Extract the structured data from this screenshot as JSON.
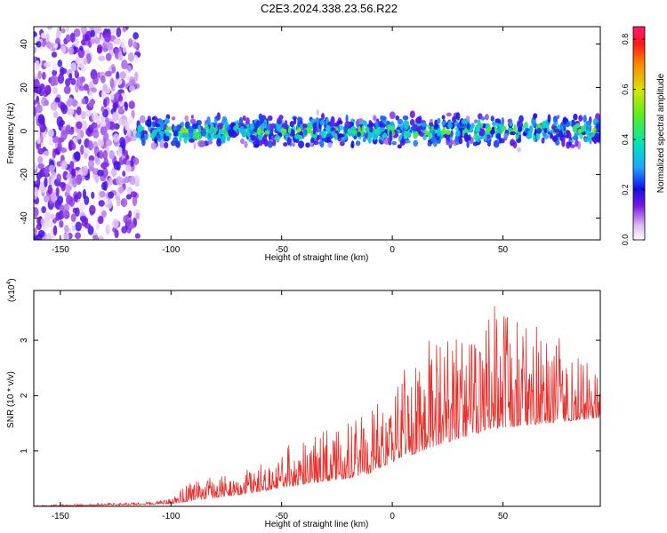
{
  "title": "C2E3.2024.338.23.56.R22",
  "chart_data": [
    {
      "type": "heatmap",
      "xlabel": "Height of straight line (km)",
      "ylabel": "Frequency (Hz)",
      "xlim": [
        -162,
        94
      ],
      "ylim": [
        -50,
        48
      ],
      "xticks": [
        -150,
        -100,
        -50,
        0,
        50
      ],
      "yticks": [
        -40,
        -20,
        0,
        20,
        40
      ],
      "colorbar": {
        "label": "Normalized spectral amplitude",
        "range": [
          0.0,
          0.85
        ],
        "ticks": [
          0.0,
          0.2,
          0.4,
          0.6,
          0.8
        ]
      },
      "bands": [
        {
          "x_range": [
            -162,
            -115
          ],
          "y_range": [
            -50,
            48
          ],
          "mean_amplitude": 0.1
        },
        {
          "x_range": [
            -115,
            94
          ],
          "y_center": 0,
          "y_halfwidth": 7,
          "mean_amplitude": 0.3
        }
      ]
    },
    {
      "type": "line",
      "xlabel": "Height of straight line (km)",
      "ylabel": "SNR (10 * v/v)",
      "scale_note": "(x10",
      "scale_exponent": "4",
      "xlim": [
        -162,
        94
      ],
      "ylim": [
        0,
        3.9
      ],
      "xticks": [
        -150,
        -100,
        -50,
        0,
        50
      ],
      "yticks": [
        1,
        2,
        3
      ],
      "series": [
        {
          "color": "#e8302b",
          "envelope": [
            {
              "x": -162,
              "base": 0.0,
              "peak": 0.02
            },
            {
              "x": -110,
              "base": 0.03,
              "peak": 0.08
            },
            {
              "x": -100,
              "base": 0.05,
              "peak": 0.15
            },
            {
              "x": -90,
              "base": 0.1,
              "peak": 0.5
            },
            {
              "x": -70,
              "base": 0.2,
              "peak": 0.6
            },
            {
              "x": -55,
              "base": 0.3,
              "peak": 0.9
            },
            {
              "x": -40,
              "base": 0.4,
              "peak": 1.3
            },
            {
              "x": -20,
              "base": 0.5,
              "peak": 1.5
            },
            {
              "x": -10,
              "base": 0.6,
              "peak": 1.8
            },
            {
              "x": 0,
              "base": 0.8,
              "peak": 2.3
            },
            {
              "x": 20,
              "base": 1.1,
              "peak": 3.2
            },
            {
              "x": 45,
              "base": 1.4,
              "peak": 3.7
            },
            {
              "x": 70,
              "base": 1.5,
              "peak": 3.2
            },
            {
              "x": 94,
              "base": 1.6,
              "peak": 2.5
            }
          ]
        }
      ]
    }
  ]
}
